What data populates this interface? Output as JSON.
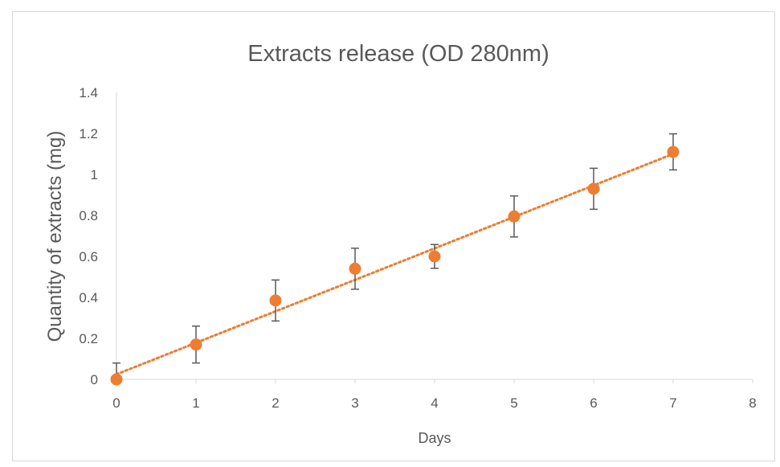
{
  "chart_data": {
    "type": "scatter",
    "title": "Extracts release (OD 280nm)",
    "xlabel": "Days",
    "ylabel": "Quantity of extracts (mg)",
    "xlim": [
      0,
      8
    ],
    "ylim": [
      0,
      1.4
    ],
    "x_ticks": [
      "0",
      "1",
      "2",
      "3",
      "4",
      "5",
      "6",
      "7",
      "8"
    ],
    "y_ticks": [
      "0",
      "0.2",
      "0.4",
      "0.6",
      "0.8",
      "1",
      "1.2",
      "1.4"
    ],
    "grid": false,
    "legend": "none",
    "series": [
      {
        "x": [
          0,
          1,
          2,
          3,
          4,
          5,
          6,
          7
        ],
        "y": [
          0,
          0.17,
          0.385,
          0.54,
          0.6,
          0.795,
          0.93,
          1.11
        ],
        "error": [
          0.08,
          0.09,
          0.1,
          0.1,
          0.058,
          0.1,
          0.1,
          0.088
        ],
        "color": "#ed7d31"
      }
    ],
    "trendline": {
      "type": "linear",
      "style": "dotted",
      "color": "#ed7d31",
      "x": [
        0,
        7
      ],
      "y": [
        0.025,
        1.1
      ]
    },
    "errorbar_color": "#595959",
    "axis_color": "#d9d9d9"
  }
}
